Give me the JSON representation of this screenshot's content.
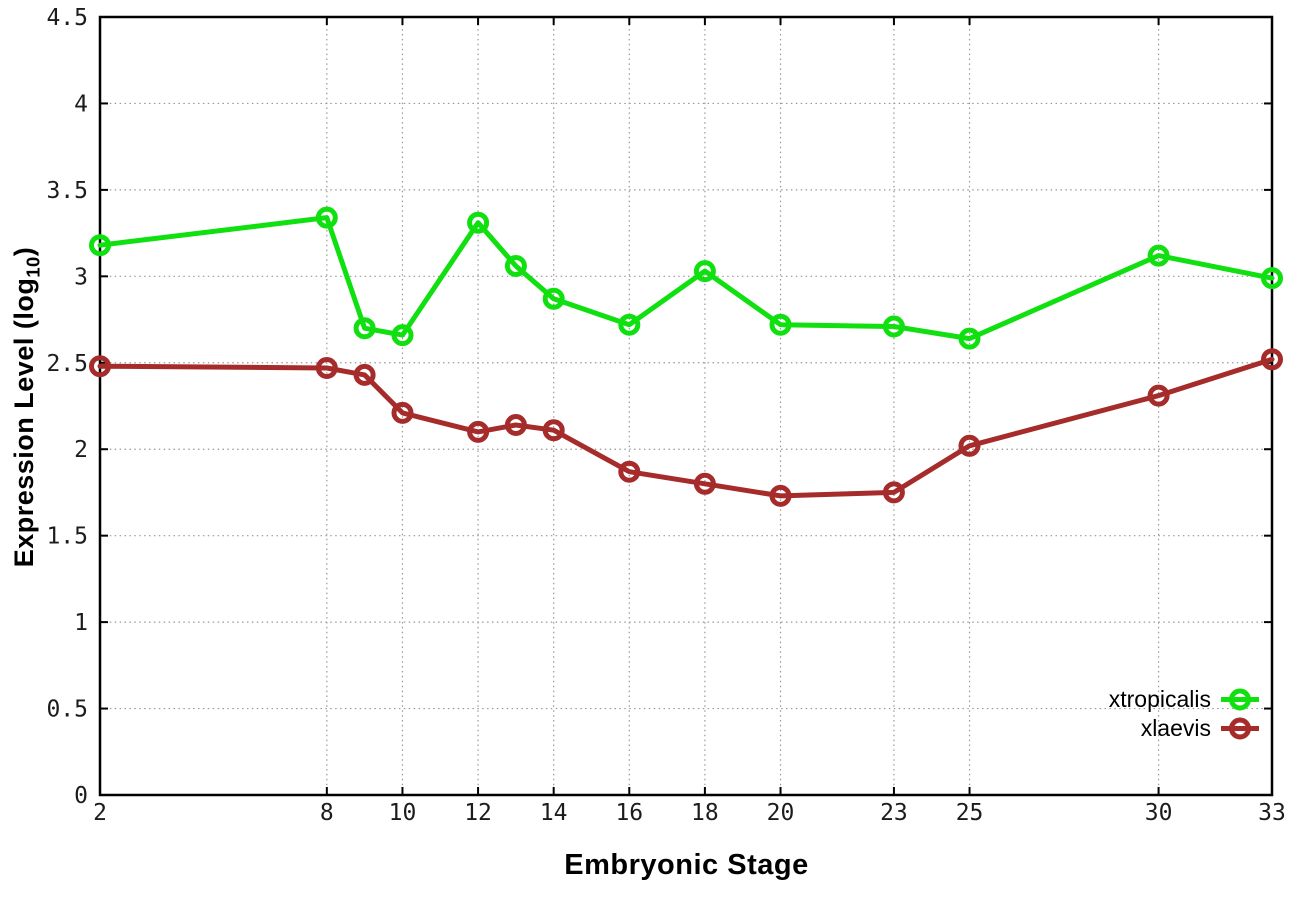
{
  "chart_data": {
    "type": "line",
    "title": "",
    "xlabel": "Embryonic Stage",
    "ylabel": "Expression Level (log10)",
    "ylabel_parts": {
      "prefix": "Expression Level (log",
      "sub": "10",
      "suffix": ")"
    },
    "xlim": [
      2,
      33
    ],
    "ylim": [
      0,
      4.5
    ],
    "grid": true,
    "legend_position": "inside bottom right",
    "background": "#ffffff",
    "axis_color": "#000000",
    "grid_color": "#989898",
    "x": [
      2,
      8,
      9,
      10,
      12,
      13,
      14,
      16,
      18,
      20,
      23,
      25,
      30,
      33
    ],
    "series": [
      {
        "name": "xtropicalis",
        "color": "#10df10",
        "values": [
          3.18,
          3.34,
          2.7,
          2.66,
          3.31,
          3.06,
          2.87,
          2.72,
          3.03,
          2.72,
          2.71,
          2.64,
          3.12,
          2.99
        ]
      },
      {
        "name": "xlaevis",
        "color": "#a62b2b",
        "values": [
          2.48,
          2.47,
          2.43,
          2.21,
          2.1,
          2.14,
          2.11,
          1.87,
          1.8,
          1.73,
          1.75,
          2.02,
          2.31,
          2.52
        ]
      }
    ],
    "xticks": [
      {
        "value": 2,
        "label": "2"
      },
      {
        "value": 8,
        "label": "8"
      },
      {
        "value": 10,
        "label": "10"
      },
      {
        "value": 12,
        "label": "12"
      },
      {
        "value": 14,
        "label": "14"
      },
      {
        "value": 16,
        "label": "16"
      },
      {
        "value": 18,
        "label": "18"
      },
      {
        "value": 20,
        "label": "20"
      },
      {
        "value": 23,
        "label": "23"
      },
      {
        "value": 25,
        "label": "25"
      },
      {
        "value": 30,
        "label": "30"
      },
      {
        "value": 33,
        "label": "33"
      }
    ],
    "yticks": [
      {
        "value": 0,
        "label": "0"
      },
      {
        "value": 0.5,
        "label": "0.5"
      },
      {
        "value": 1,
        "label": "1"
      },
      {
        "value": 1.5,
        "label": "1.5"
      },
      {
        "value": 2,
        "label": "2"
      },
      {
        "value": 2.5,
        "label": "2.5"
      },
      {
        "value": 3,
        "label": "3"
      },
      {
        "value": 3.5,
        "label": "3.5"
      },
      {
        "value": 4,
        "label": "4"
      },
      {
        "value": 4.5,
        "label": "4.5"
      }
    ]
  }
}
